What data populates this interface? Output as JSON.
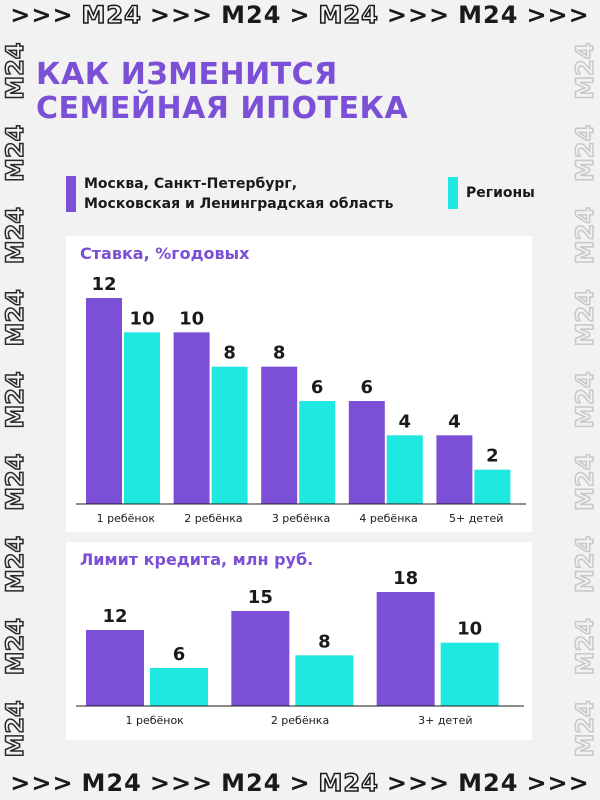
{
  "strip_top": [
    ">>>",
    "M24",
    ">>>",
    "M24",
    ">",
    "M24",
    ">>>",
    "M24",
    ">>>"
  ],
  "strip_bottom": [
    ">>>",
    "M24",
    ">>>",
    "M24",
    ">",
    "M24",
    ">>>",
    "M24",
    ">>>"
  ],
  "side_text": [
    "M24",
    "M24",
    "M24",
    "M24",
    "M24",
    "M24",
    "M24",
    "M24",
    "M24"
  ],
  "title": {
    "line1": "КАК ИЗМЕНИТСЯ",
    "line2": "СЕМЕЙНАЯ ИПОТЕКА"
  },
  "legend": {
    "moscow_line1": "Москва, Санкт-Петербург,",
    "moscow_line2": "Московская и Ленинградская область",
    "regions": "Регионы"
  },
  "colors": {
    "moscow": "#7b4fd6",
    "regions": "#1ee8e0",
    "title": "#7b4fd6"
  },
  "chart_data": [
    {
      "type": "bar",
      "title": "Ставка, %годовых",
      "categories": [
        "1 ребёнок",
        "2 ребёнка",
        "3 ребёнка",
        "4 ребёнка",
        "5+ детей"
      ],
      "series": [
        {
          "name": "Москва, Санкт-Петербург, Московская и Ленинградская область",
          "values": [
            12,
            10,
            8,
            6,
            4
          ]
        },
        {
          "name": "Регионы",
          "values": [
            10,
            8,
            6,
            4,
            2
          ]
        }
      ],
      "ylim": [
        0,
        12
      ]
    },
    {
      "type": "bar",
      "title": "Лимит кредита, млн руб.",
      "categories": [
        "1 ребёнок",
        "2 ребёнка",
        "3+ детей"
      ],
      "series": [
        {
          "name": "Москва, Санкт-Петербург, Московская и Ленинградская область",
          "values": [
            12,
            15,
            18
          ]
        },
        {
          "name": "Регионы",
          "values": [
            6,
            8,
            10
          ]
        }
      ],
      "ylim": [
        0,
        18
      ]
    }
  ]
}
